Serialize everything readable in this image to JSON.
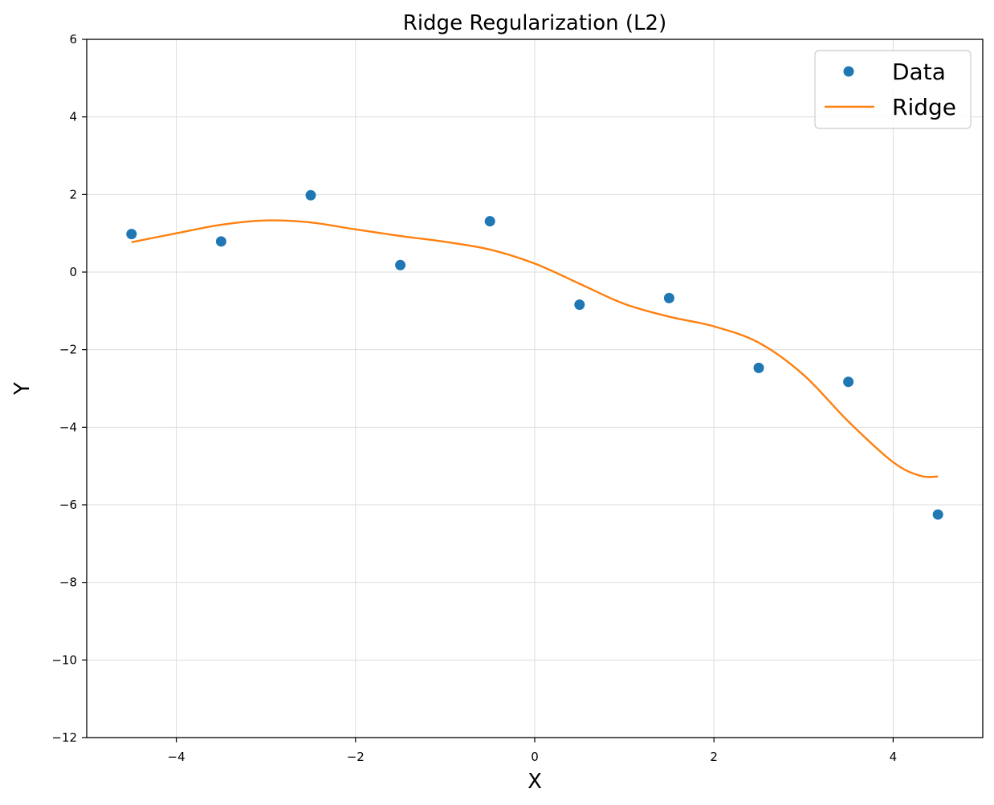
{
  "chart_data": {
    "type": "scatter",
    "title": "Ridge Regularization (L2)",
    "xlabel": "X",
    "ylabel": "Y",
    "xlim": [
      -5,
      5
    ],
    "ylim": [
      -12,
      6
    ],
    "xticks": [
      -4,
      -2,
      0,
      2,
      4
    ],
    "yticks": [
      -12,
      -10,
      -8,
      -6,
      -4,
      -2,
      0,
      2,
      4,
      6
    ],
    "grid": true,
    "legend_position": "top-right",
    "series": [
      {
        "name": "Data",
        "type": "scatter",
        "color": "#1f77b4",
        "x": [
          -4.5,
          -3.5,
          -2.5,
          -1.5,
          -0.5,
          0.5,
          1.5,
          2.5,
          3.5,
          4.5
        ],
        "y": [
          0.98,
          0.79,
          1.98,
          0.18,
          1.31,
          -0.84,
          -0.67,
          -2.47,
          -2.83,
          -6.25
        ]
      },
      {
        "name": "Ridge",
        "type": "line",
        "color": "#ff7f0e",
        "x": [
          -4.5,
          -4.0,
          -3.5,
          -3.0,
          -2.5,
          -2.0,
          -1.5,
          -1.0,
          -0.5,
          0.0,
          0.5,
          1.0,
          1.5,
          2.0,
          2.5,
          3.0,
          3.5,
          4.0,
          4.3,
          4.5
        ],
        "y": [
          0.77,
          1.0,
          1.22,
          1.33,
          1.28,
          1.1,
          0.93,
          0.78,
          0.58,
          0.22,
          -0.3,
          -0.82,
          -1.15,
          -1.4,
          -1.82,
          -2.65,
          -3.85,
          -4.9,
          -5.25,
          -5.27
        ]
      }
    ]
  }
}
